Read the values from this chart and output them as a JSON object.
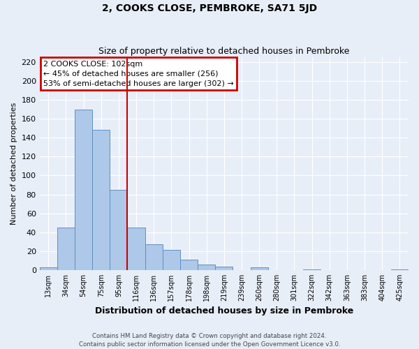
{
  "title": "2, COOKS CLOSE, PEMBROKE, SA71 5JD",
  "subtitle": "Size of property relative to detached houses in Pembroke",
  "xlabel": "Distribution of detached houses by size in Pembroke",
  "ylabel": "Number of detached properties",
  "bin_labels": [
    "13sqm",
    "34sqm",
    "54sqm",
    "75sqm",
    "95sqm",
    "116sqm",
    "136sqm",
    "157sqm",
    "178sqm",
    "198sqm",
    "219sqm",
    "239sqm",
    "260sqm",
    "280sqm",
    "301sqm",
    "322sqm",
    "342sqm",
    "363sqm",
    "383sqm",
    "404sqm",
    "425sqm"
  ],
  "bar_heights": [
    3,
    45,
    170,
    148,
    85,
    45,
    27,
    21,
    11,
    6,
    4,
    0,
    3,
    0,
    0,
    1,
    0,
    0,
    0,
    0,
    1
  ],
  "bar_color": "#adc8e8",
  "bar_edge_color": "#6090c0",
  "vline_x": 4.5,
  "vline_color": "#cc0000",
  "annotation_title": "2 COOKS CLOSE: 102sqm",
  "annotation_line1": "← 45% of detached houses are smaller (256)",
  "annotation_line2": "53% of semi-detached houses are larger (302) →",
  "annotation_box_color": "#cc0000",
  "ylim": [
    0,
    225
  ],
  "yticks": [
    0,
    20,
    40,
    60,
    80,
    100,
    120,
    140,
    160,
    180,
    200,
    220
  ],
  "footer_line1": "Contains HM Land Registry data © Crown copyright and database right 2024.",
  "footer_line2": "Contains public sector information licensed under the Open Government Licence v3.0.",
  "background_color": "#e8eef8",
  "grid_color": "#ffffff"
}
